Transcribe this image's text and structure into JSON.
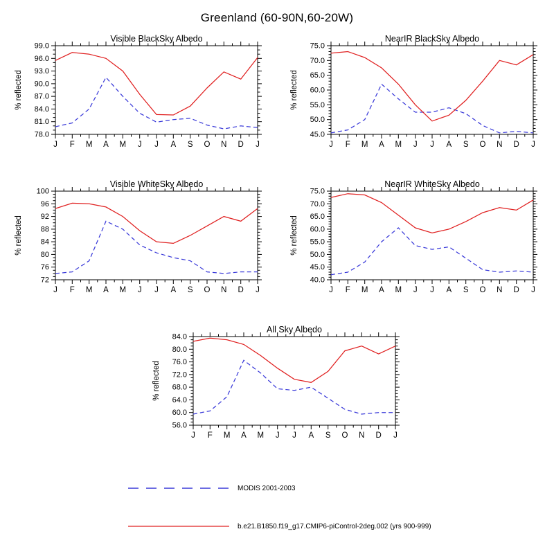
{
  "figure": {
    "title": "Greenland (60-90N,60-20W)"
  },
  "legend": {
    "entries": [
      {
        "label": "MODIS 2001-2003",
        "color": "#3a3ad9",
        "style": "dashed"
      },
      {
        "label": "b.e21.B1850.f19_g17.CMIP6-piControl-2deg.002 (yrs 900-999)",
        "color": "#e02020",
        "style": "solid"
      }
    ]
  },
  "chart_data": [
    {
      "type": "line",
      "title": "Visible BlackSky Albedo",
      "ylabel": "% reflected",
      "categories": [
        "J",
        "F",
        "M",
        "A",
        "M",
        "J",
        "J",
        "A",
        "S",
        "O",
        "N",
        "D",
        "J"
      ],
      "ylim": [
        78.0,
        99.0
      ],
      "yticks": [
        78.0,
        81.0,
        84.0,
        87.0,
        90.0,
        93.0,
        96.0,
        99.0
      ],
      "ydecimals": 1,
      "yminor": 3,
      "grid": false,
      "series": [
        {
          "name": "MODIS 2001-2003",
          "color": "#3a3ad9",
          "dash": true,
          "values": [
            79.8,
            80.7,
            84.0,
            91.5,
            87.0,
            83.0,
            80.9,
            81.5,
            81.8,
            80.2,
            79.3,
            80.0,
            79.6
          ]
        },
        {
          "name": "b.e21.B1850.f19_g17.CMIP6-piControl-2deg.002 (yrs 900-999)",
          "color": "#e02020",
          "dash": false,
          "values": [
            95.5,
            97.4,
            97.0,
            96.0,
            93.0,
            87.5,
            82.7,
            82.6,
            84.7,
            89.0,
            92.8,
            91.1,
            96.2
          ]
        }
      ]
    },
    {
      "type": "line",
      "title": "NearIR BlackSky Albedo",
      "ylabel": "% reflected",
      "categories": [
        "J",
        "F",
        "M",
        "A",
        "M",
        "J",
        "J",
        "A",
        "S",
        "O",
        "N",
        "D",
        "J"
      ],
      "ylim": [
        45.0,
        75.0
      ],
      "yticks": [
        45.0,
        50.0,
        55.0,
        60.0,
        65.0,
        70.0,
        75.0
      ],
      "ydecimals": 1,
      "yminor": 5,
      "grid": false,
      "series": [
        {
          "name": "MODIS 2001-2003",
          "color": "#3a3ad9",
          "dash": true,
          "values": [
            45.5,
            46.5,
            50.0,
            62.0,
            57.0,
            52.5,
            52.5,
            54.0,
            52.0,
            48.0,
            45.5,
            46.0,
            45.5
          ]
        },
        {
          "name": "b.e21.B1850.f19_g17.CMIP6-piControl-2deg.002 (yrs 900-999)",
          "color": "#e02020",
          "dash": false,
          "values": [
            72.5,
            73.0,
            71.0,
            67.5,
            62.0,
            55.0,
            49.5,
            51.5,
            56.5,
            63.0,
            70.0,
            68.5,
            72.0
          ]
        }
      ]
    },
    {
      "type": "line",
      "title": "Visible WhiteSky Albedo",
      "ylabel": "% reflected",
      "categories": [
        "J",
        "F",
        "M",
        "A",
        "M",
        "J",
        "J",
        "A",
        "S",
        "O",
        "N",
        "D",
        "J"
      ],
      "ylim": [
        72,
        100
      ],
      "yticks": [
        72,
        76,
        80,
        84,
        88,
        92,
        96,
        100
      ],
      "ydecimals": 0,
      "yminor": 4,
      "grid": false,
      "series": [
        {
          "name": "MODIS 2001-2003",
          "color": "#3a3ad9",
          "dash": true,
          "values": [
            74.0,
            74.5,
            78.0,
            90.5,
            88.0,
            83.0,
            80.5,
            79.0,
            78.0,
            74.5,
            74.0,
            74.5,
            74.5
          ]
        },
        {
          "name": "b.e21.B1850.f19_g17.CMIP6-piControl-2deg.002 (yrs 900-999)",
          "color": "#e02020",
          "dash": false,
          "values": [
            94.5,
            96.2,
            96.0,
            95.0,
            92.0,
            87.5,
            84.0,
            83.5,
            86.0,
            89.0,
            92.0,
            90.5,
            94.5
          ]
        }
      ]
    },
    {
      "type": "line",
      "title": "NearIR WhiteSky Albedo",
      "ylabel": "% reflected",
      "categories": [
        "J",
        "F",
        "M",
        "A",
        "M",
        "J",
        "J",
        "A",
        "S",
        "O",
        "N",
        "D",
        "J"
      ],
      "ylim": [
        40.0,
        75.0
      ],
      "yticks": [
        40.0,
        45.0,
        50.0,
        55.0,
        60.0,
        65.0,
        70.0,
        75.0
      ],
      "ydecimals": 1,
      "yminor": 5,
      "grid": false,
      "series": [
        {
          "name": "MODIS 2001-2003",
          "color": "#3a3ad9",
          "dash": true,
          "values": [
            42.0,
            43.0,
            47.0,
            55.0,
            60.5,
            53.5,
            52.0,
            53.0,
            48.5,
            44.0,
            43.0,
            43.5,
            43.0
          ]
        },
        {
          "name": "b.e21.B1850.f19_g17.CMIP6-piControl-2deg.002 (yrs 900-999)",
          "color": "#e02020",
          "dash": false,
          "values": [
            72.5,
            74.0,
            73.5,
            70.5,
            65.5,
            60.5,
            58.5,
            60.0,
            63.0,
            66.5,
            68.5,
            67.5,
            71.5
          ]
        }
      ]
    },
    {
      "type": "line",
      "title": "All Sky Albedo",
      "ylabel": "% reflected",
      "categories": [
        "J",
        "F",
        "M",
        "A",
        "M",
        "J",
        "J",
        "A",
        "S",
        "O",
        "N",
        "D",
        "J"
      ],
      "ylim": [
        56.0,
        84.0
      ],
      "yticks": [
        56.0,
        60.0,
        64.0,
        68.0,
        72.0,
        76.0,
        80.0,
        84.0
      ],
      "ydecimals": 1,
      "yminor": 4,
      "grid": false,
      "series": [
        {
          "name": "MODIS 2001-2003",
          "color": "#3a3ad9",
          "dash": true,
          "values": [
            59.5,
            60.5,
            65.0,
            76.5,
            72.5,
            67.5,
            67.0,
            68.0,
            64.5,
            61.0,
            59.5,
            60.0,
            60.0
          ]
        },
        {
          "name": "b.e21.B1850.f19_g17.CMIP6-piControl-2deg.002 (yrs 900-999)",
          "color": "#e02020",
          "dash": false,
          "values": [
            82.5,
            83.5,
            83.0,
            81.5,
            78.0,
            74.0,
            70.5,
            69.5,
            73.0,
            79.5,
            81.0,
            78.5,
            81.0
          ]
        }
      ]
    }
  ]
}
